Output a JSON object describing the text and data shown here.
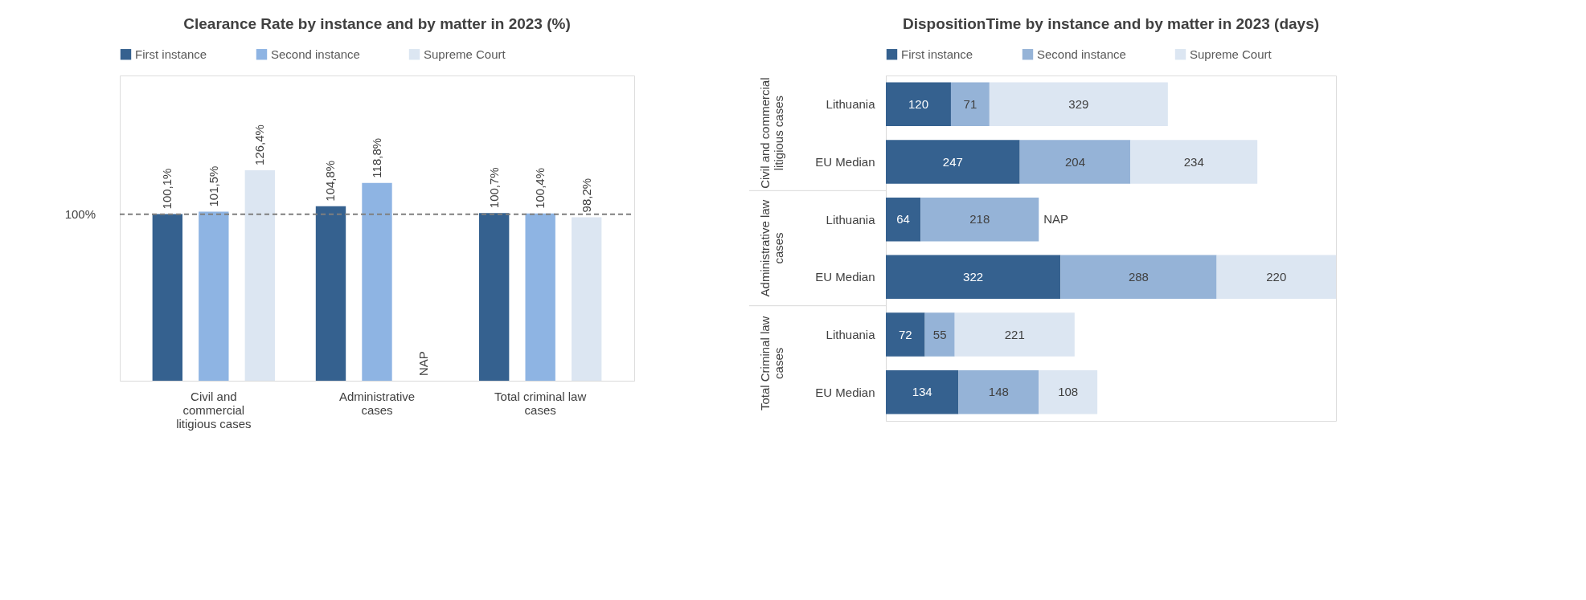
{
  "chart_data": [
    {
      "type": "bar",
      "title": "Clearance Rate by instance and by matter in 2023 (%)",
      "categories": [
        "Civil and commercial litigious cases",
        "Administrative cases",
        "Total criminal law cases"
      ],
      "series": [
        {
          "name": "First instance",
          "color": "#35618f",
          "values": [
            100.1,
            104.8,
            100.7
          ],
          "value_labels": [
            "100,1%",
            "104,8%",
            "100,7%"
          ]
        },
        {
          "name": "Second instance",
          "color": "#8eb4e3",
          "values": [
            101.5,
            118.8,
            100.4
          ],
          "value_labels": [
            "101,5%",
            "118,8%",
            "100,4%"
          ]
        },
        {
          "name": "Supreme Court",
          "color": "#dce6f2",
          "values": [
            126.4,
            null,
            98.2
          ],
          "value_labels": [
            "126,4%",
            "NAP",
            "98,2%"
          ]
        }
      ],
      "ref_lines": [
        {
          "axis": "y",
          "value": 100,
          "label": "100%",
          "line_style": "dashed",
          "color": "#7f7f7f"
        }
      ],
      "legend": "top",
      "grid": false,
      "tick_labels": "x"
    },
    {
      "type": "bar",
      "orientation": "horizontal",
      "stacked": true,
      "title": "DispositionTime by instance and by matter in 2023 (days)",
      "categories": [
        "Lithuania",
        "EU Median",
        "Lithuania",
        "EU Median",
        "Lithuania",
        "EU Median"
      ],
      "series": [
        {
          "name": "First instance",
          "color": "#35618f",
          "values": [
            120,
            247,
            64,
            322,
            72,
            134
          ],
          "value_labels": [
            "120",
            "247",
            "64",
            "322",
            "72",
            "134"
          ]
        },
        {
          "name": "Second instance",
          "color": "#95b3d7",
          "values": [
            71,
            204,
            218,
            288,
            55,
            148
          ],
          "value_labels": [
            "71",
            "204",
            "218",
            "288",
            "55",
            "148"
          ]
        },
        {
          "name": "Supreme Court",
          "color": "#dce6f2",
          "values": [
            329,
            234,
            null,
            220,
            221,
            108
          ],
          "value_labels": [
            "329",
            "234",
            "NAP",
            "220",
            "221",
            "108"
          ]
        }
      ],
      "annotations": [
        "Civil and commercial litigious cases",
        "Administrative law cases",
        "Total Criminal law cases"
      ],
      "legend": "top",
      "grid": false,
      "tick_labels": "y"
    }
  ]
}
